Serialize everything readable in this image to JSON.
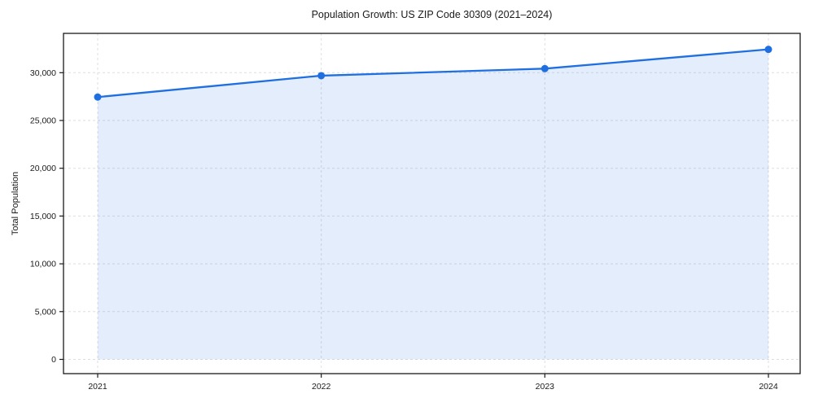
{
  "figure": {
    "title": "Population Growth: US ZIP Code 30309 (2021–2024)"
  },
  "chart_data": {
    "type": "line",
    "title": "Population Growth: US ZIP Code 30309 (2021–2024)",
    "xlabel": "",
    "ylabel": "Total Population",
    "categories": [
      "2021",
      "2022",
      "2023",
      "2024"
    ],
    "series": [
      {
        "name": "Total Population",
        "values": [
          27450,
          29690,
          30425,
          32440
        ]
      }
    ],
    "yticks": [
      0,
      5000,
      10000,
      15000,
      20000,
      25000,
      30000
    ],
    "ylim": [
      -1600,
      34100
    ],
    "grid": true,
    "grid_style": "dashed",
    "legend_position": "none",
    "colors": {
      "line": "#1f6fe0",
      "marker": "#1f6fe0",
      "fill": "#1f6fe0",
      "fill_opacity": 0.12,
      "grid": "#dedede",
      "spine": "#1a1a1a",
      "text": "#1a1a1a",
      "background": "#ffffff"
    }
  }
}
